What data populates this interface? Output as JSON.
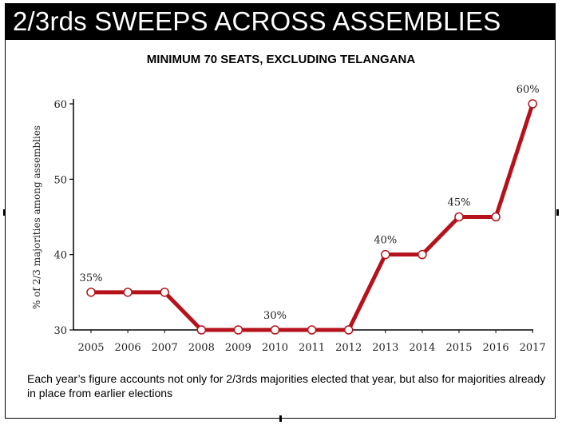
{
  "header": {
    "title": "2/3rds SWEEPS ACROSS ASSEMBLIES",
    "subtitle": "MINIMUM 70 SEATS, EXCLUDING TELANGANA"
  },
  "footnote": "Each year’s figure accounts not only for 2/3rds majorities elected that year, but also for majorities already in place from earlier elections",
  "colors": {
    "line": "#b5121b",
    "marker_fill": "#ffffff",
    "axis": "#000000"
  },
  "chart_data": {
    "type": "line",
    "title": "2/3rds SWEEPS ACROSS ASSEMBLIES",
    "subtitle": "MINIMUM 70 SEATS, EXCLUDING TELANGANA",
    "xlabel": "",
    "ylabel": "% of 2/3 majorities among assemblies",
    "x": [
      "2005",
      "2006",
      "2007",
      "2008",
      "2009",
      "2010",
      "2011",
      "2012",
      "2013",
      "2014",
      "2015",
      "2016",
      "2017"
    ],
    "series": [
      {
        "values": [
          35,
          35,
          35,
          30,
          30,
          30,
          30,
          30,
          40,
          40,
          45,
          45,
          60
        ]
      }
    ],
    "ylim": [
      30,
      60
    ],
    "yticks": [
      30,
      40,
      50,
      60
    ],
    "annotations": [
      {
        "x": "2005",
        "text": "35%"
      },
      {
        "x": "2010",
        "text": "30%"
      },
      {
        "x": "2013",
        "text": "40%"
      },
      {
        "x": "2015",
        "text": "45%"
      },
      {
        "x": "2017",
        "text": "60%"
      }
    ],
    "grid": false,
    "legend": "none"
  }
}
